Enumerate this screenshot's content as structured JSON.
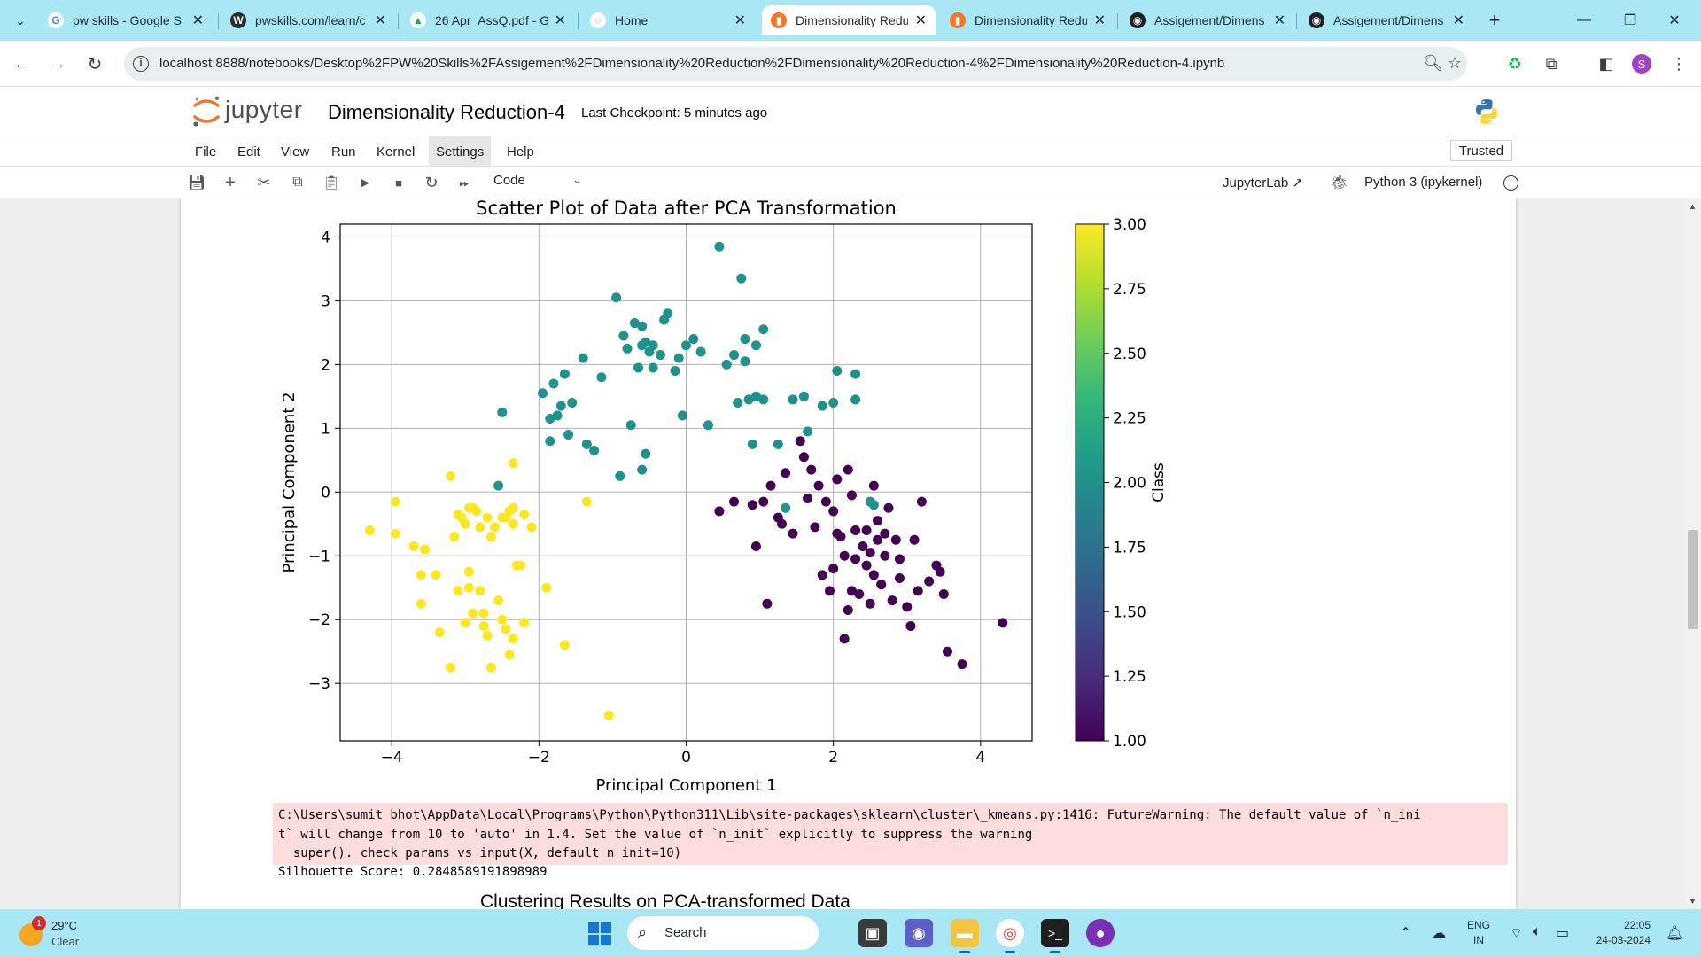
{
  "browser": {
    "tabs": [
      {
        "title": "pw skills - Google S",
        "icon": "google-icon"
      },
      {
        "title": "pwskills.com/learn/c",
        "icon": "wordpress-icon"
      },
      {
        "title": "26 Apr_AssQ.pdf - G",
        "icon": "google-drive-icon"
      },
      {
        "title": "Home",
        "icon": "jupyter-icon"
      },
      {
        "title": "Dimensionality Redu",
        "icon": "jupyter-notebook-icon",
        "active": true
      },
      {
        "title": "Dimensionality Redu",
        "icon": "jupyter-notebook-icon"
      },
      {
        "title": "Assigement/Dimens",
        "icon": "github-icon"
      },
      {
        "title": "Assigement/Dimens",
        "icon": "github-icon"
      }
    ],
    "url": "localhost:8888/notebooks/Desktop%2FPW%20Skills%2FAssigement%2FDimensionality%20Reduction%2FDimensionality%20Reduction-4%2FDimensionality%20Reduction-4.ipynb",
    "profile_initial": "S"
  },
  "jupyter": {
    "brand": "jupyter",
    "notebook_title": "Dimensionality Reduction-4",
    "checkpoint": "Last Checkpoint: 5 minutes ago",
    "menu": [
      "File",
      "Edit",
      "View",
      "Run",
      "Kernel",
      "Settings",
      "Help"
    ],
    "trusted": "Trusted",
    "cell_type": "Code",
    "jupyterlab_link": "JupyterLab",
    "kernel_name": "Python 3 (ipykernel)"
  },
  "chart_data": {
    "type": "scatter",
    "title": "Scatter Plot of Data after PCA Transformation",
    "xlabel": "Principal Component 1",
    "ylabel": "Principal Component 2",
    "xlim": [
      -4.7,
      4.7
    ],
    "ylim": [
      -3.9,
      4.2
    ],
    "xticks": [
      -4,
      -2,
      0,
      2,
      4
    ],
    "yticks": [
      -3,
      -2,
      -1,
      0,
      1,
      2,
      3,
      4
    ],
    "xtick_labels": [
      "−4",
      "−2",
      "0",
      "2",
      "4"
    ],
    "ytick_labels": [
      "−3",
      "−2",
      "−1",
      "0",
      "1",
      "2",
      "3",
      "4"
    ],
    "grid": true,
    "colormap": "viridis",
    "colorbar": {
      "label": "Class",
      "range": [
        1.0,
        3.0
      ],
      "ticks": [
        1.0,
        1.25,
        1.5,
        1.75,
        2.0,
        2.25,
        2.5,
        2.75,
        3.0
      ],
      "tick_labels": [
        "1.00",
        "1.25",
        "1.50",
        "1.75",
        "2.00",
        "2.25",
        "2.50",
        "2.75",
        "3.00"
      ]
    },
    "series": [
      {
        "class": 1,
        "color": "#440154",
        "points": [
          [
            0.45,
            -0.3
          ],
          [
            0.65,
            -0.15
          ],
          [
            0.95,
            -0.85
          ],
          [
            1.05,
            -0.15
          ],
          [
            1.15,
            0.1
          ],
          [
            1.25,
            -0.4
          ],
          [
            1.35,
            0.3
          ],
          [
            1.45,
            -0.65
          ],
          [
            1.55,
            0.8
          ],
          [
            1.6,
            0.55
          ],
          [
            1.7,
            0.35
          ],
          [
            1.8,
            0.1
          ],
          [
            1.9,
            -0.15
          ],
          [
            2.0,
            -0.3
          ],
          [
            2.05,
            0.2
          ],
          [
            2.1,
            -0.7
          ],
          [
            2.15,
            -1.0
          ],
          [
            2.2,
            0.35
          ],
          [
            2.25,
            -0.05
          ],
          [
            2.3,
            -0.6
          ],
          [
            2.4,
            -0.85
          ],
          [
            2.45,
            -1.15
          ],
          [
            2.5,
            -0.95
          ],
          [
            2.55,
            0.1
          ],
          [
            2.6,
            -0.75
          ],
          [
            2.65,
            -1.45
          ],
          [
            2.7,
            -0.65
          ],
          [
            2.75,
            -0.25
          ],
          [
            2.8,
            -1.7
          ],
          [
            2.85,
            -0.75
          ],
          [
            2.9,
            -1.35
          ],
          [
            3.0,
            -1.8
          ],
          [
            3.05,
            -2.1
          ],
          [
            3.1,
            -0.75
          ],
          [
            3.15,
            -1.55
          ],
          [
            3.2,
            -0.15
          ],
          [
            3.3,
            -1.4
          ],
          [
            3.4,
            -1.15
          ],
          [
            3.45,
            -1.25
          ],
          [
            3.5,
            -1.6
          ],
          [
            3.55,
            -2.5
          ],
          [
            3.75,
            -2.7
          ],
          [
            4.3,
            -2.05
          ],
          [
            2.0,
            -1.2
          ],
          [
            2.35,
            -1.6
          ],
          [
            1.95,
            -1.55
          ],
          [
            2.2,
            -1.85
          ],
          [
            2.5,
            -1.75
          ],
          [
            2.65,
            -1.45
          ],
          [
            2.15,
            -2.3
          ],
          [
            1.1,
            -1.75
          ],
          [
            1.85,
            -1.3
          ],
          [
            2.3,
            -1.05
          ],
          [
            2.45,
            -0.6
          ],
          [
            0.9,
            -0.2
          ],
          [
            1.3,
            -0.5
          ],
          [
            2.7,
            -1.0
          ],
          [
            2.05,
            -0.65
          ],
          [
            1.75,
            -0.55
          ],
          [
            2.6,
            -0.45
          ],
          [
            2.9,
            -1.05
          ],
          [
            1.65,
            -0.1
          ],
          [
            2.55,
            -1.3
          ],
          [
            2.25,
            -1.55
          ]
        ]
      },
      {
        "class": 2,
        "color": "#21918c",
        "points": [
          [
            -2.5,
            1.25
          ],
          [
            -2.55,
            0.1
          ],
          [
            -1.95,
            1.55
          ],
          [
            -1.85,
            1.15
          ],
          [
            -1.85,
            0.8
          ],
          [
            -1.8,
            1.7
          ],
          [
            -1.7,
            1.35
          ],
          [
            -1.65,
            1.85
          ],
          [
            -1.6,
            0.9
          ],
          [
            -1.55,
            1.4
          ],
          [
            -1.4,
            2.1
          ],
          [
            -1.35,
            0.75
          ],
          [
            -1.25,
            0.65
          ],
          [
            -1.15,
            1.8
          ],
          [
            -0.95,
            3.05
          ],
          [
            -0.85,
            2.45
          ],
          [
            -0.8,
            2.25
          ],
          [
            -0.75,
            1.05
          ],
          [
            -0.7,
            2.65
          ],
          [
            -0.6,
            2.3
          ],
          [
            -0.55,
            2.35
          ],
          [
            -0.5,
            2.2
          ],
          [
            -0.45,
            1.95
          ],
          [
            -0.35,
            2.15
          ],
          [
            -0.25,
            2.8
          ],
          [
            -0.15,
            1.9
          ],
          [
            -0.1,
            2.1
          ],
          [
            0.0,
            2.3
          ],
          [
            0.1,
            2.4
          ],
          [
            0.2,
            2.2
          ],
          [
            0.3,
            1.05
          ],
          [
            0.45,
            3.85
          ],
          [
            0.65,
            2.15
          ],
          [
            0.7,
            1.4
          ],
          [
            0.75,
            3.35
          ],
          [
            0.8,
            2.05
          ],
          [
            0.85,
            1.45
          ],
          [
            0.9,
            0.75
          ],
          [
            0.95,
            2.3
          ],
          [
            1.05,
            2.55
          ],
          [
            1.05,
            1.45
          ],
          [
            1.25,
            0.75
          ],
          [
            1.35,
            -0.25
          ],
          [
            1.45,
            1.45
          ],
          [
            1.6,
            1.5
          ],
          [
            1.65,
            0.95
          ],
          [
            1.85,
            1.35
          ],
          [
            2.0,
            1.4
          ],
          [
            2.05,
            1.9
          ],
          [
            2.3,
            1.85
          ],
          [
            2.3,
            1.45
          ],
          [
            2.55,
            -0.2
          ],
          [
            -0.6,
            0.35
          ],
          [
            -0.55,
            0.6
          ],
          [
            -0.05,
            1.2
          ],
          [
            -0.9,
            0.25
          ],
          [
            -0.65,
            1.95
          ],
          [
            -1.75,
            1.2
          ],
          [
            0.8,
            2.4
          ],
          [
            -0.3,
            2.7
          ],
          [
            -0.45,
            2.3
          ],
          [
            0.95,
            1.5
          ],
          [
            2.5,
            -0.15
          ],
          [
            -0.6,
            2.6
          ],
          [
            0.55,
            2.0
          ]
        ]
      },
      {
        "class": 3,
        "color": "#fde725",
        "points": [
          [
            -4.3,
            -0.6
          ],
          [
            -3.95,
            -0.15
          ],
          [
            -3.95,
            -0.65
          ],
          [
            -3.7,
            -0.85
          ],
          [
            -3.6,
            -1.3
          ],
          [
            -3.55,
            -0.9
          ],
          [
            -3.6,
            -1.75
          ],
          [
            -3.4,
            -1.3
          ],
          [
            -3.35,
            -2.2
          ],
          [
            -3.2,
            0.25
          ],
          [
            -3.15,
            -0.7
          ],
          [
            -3.1,
            -0.35
          ],
          [
            -3.0,
            -0.5
          ],
          [
            -2.95,
            -0.25
          ],
          [
            -2.95,
            -1.25
          ],
          [
            -2.95,
            -1.5
          ],
          [
            -2.9,
            -1.9
          ],
          [
            -2.85,
            -0.3
          ],
          [
            -2.8,
            -0.55
          ],
          [
            -2.8,
            -1.55
          ],
          [
            -2.75,
            -2.1
          ],
          [
            -2.7,
            -0.4
          ],
          [
            -2.65,
            -2.75
          ],
          [
            -2.6,
            -0.55
          ],
          [
            -2.55,
            -1.7
          ],
          [
            -2.5,
            -2.0
          ],
          [
            -2.45,
            -2.15
          ],
          [
            -2.4,
            -0.3
          ],
          [
            -2.35,
            -0.5
          ],
          [
            -2.35,
            -2.3
          ],
          [
            -2.25,
            -1.15
          ],
          [
            -2.2,
            -0.35
          ],
          [
            -2.2,
            -2.05
          ],
          [
            -2.1,
            -0.55
          ],
          [
            -2.35,
            0.45
          ],
          [
            -1.9,
            -1.5
          ],
          [
            -1.65,
            -2.4
          ],
          [
            -1.35,
            -0.15
          ],
          [
            -1.05,
            -3.5
          ],
          [
            -3.2,
            -2.75
          ],
          [
            -3.0,
            -2.05
          ],
          [
            -2.75,
            -1.9
          ],
          [
            -2.4,
            -2.55
          ],
          [
            -2.65,
            -0.7
          ],
          [
            -2.45,
            -0.4
          ],
          [
            -3.05,
            -0.4
          ],
          [
            -2.3,
            -1.15
          ],
          [
            -2.9,
            -0.25
          ],
          [
            -2.35,
            -0.25
          ],
          [
            -3.1,
            -1.55
          ],
          [
            -2.5,
            -0.4
          ],
          [
            -2.7,
            -2.25
          ]
        ]
      }
    ]
  },
  "output": {
    "warning_lines": [
      "C:\\Users\\sumit bhot\\AppData\\Local\\Programs\\Python\\Python311\\Lib\\site-packages\\sklearn\\cluster\\_kmeans.py:1416: FutureWarning: The default value of `n_ini",
      "t` will change from 10 to 'auto' in 1.4. Set the value of `n_init` explicitly to suppress the warning",
      "  super()._check_params_vs_input(X, default_n_init=10)"
    ],
    "stdout": "Silhouette Score: 0.2848589191898989",
    "next_plot_title": "Clustering Results on PCA-transformed Data"
  },
  "taskbar": {
    "weather_badge": "1",
    "temperature": "29°C",
    "condition": "Clear",
    "search_label": "Search",
    "lang_line1": "ENG",
    "lang_line2": "IN",
    "time": "22:05",
    "date": "24-03-2024"
  }
}
